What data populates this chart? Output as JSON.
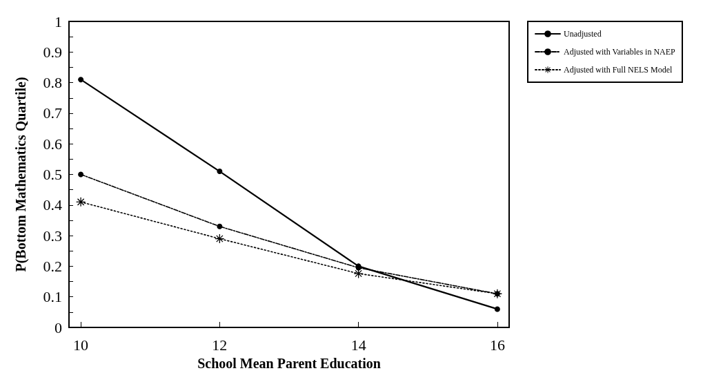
{
  "chart_data": {
    "type": "line",
    "xlabel": "School Mean Parent Education",
    "ylabel": "P(Bottom Mathematics Quartile)",
    "x": [
      10,
      12,
      14,
      16
    ],
    "series": [
      {
        "name": "Unadjusted",
        "color": "#000000",
        "values": [
          0.81,
          0.51,
          0.2,
          0.06
        ],
        "marker": "circle",
        "line_style": "solid"
      },
      {
        "name": "Adjusted with Variables in NAEP",
        "color": "#000000",
        "values": [
          0.5,
          0.33,
          0.195,
          0.11
        ],
        "marker": "circle",
        "line_style": "dashed"
      },
      {
        "name": "Adjusted with Full NELS Model",
        "color": "#000000",
        "values": [
          0.41,
          0.29,
          0.176,
          0.11
        ],
        "marker": "star",
        "line_style": "dotted"
      }
    ],
    "xlim": [
      9.83,
      16.17
    ],
    "xticks": [
      10,
      12,
      14,
      16
    ],
    "ylim": [
      0,
      1
    ],
    "yticks": [
      0,
      {
        "value": 0.05,
        "label": null
      },
      0.1,
      {
        "value": 0.15,
        "label": null
      },
      0.2,
      {
        "value": 0.25,
        "label": null
      },
      0.3,
      {
        "value": 0.35,
        "label": null
      },
      0.4,
      {
        "value": 0.45,
        "label": null
      },
      0.5,
      {
        "value": 0.55,
        "label": null
      },
      0.6,
      {
        "value": 0.65,
        "label": null
      },
      0.7,
      {
        "value": 0.75,
        "label": null
      },
      0.8,
      {
        "value": 0.85,
        "label": null
      },
      0.9,
      {
        "value": 0.95,
        "label": null
      },
      1
    ],
    "grid": false,
    "legend": "right"
  }
}
